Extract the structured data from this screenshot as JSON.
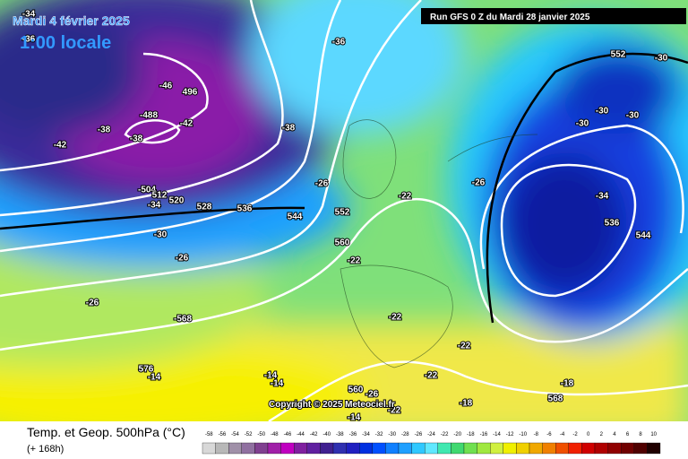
{
  "header": {
    "date": "Mardi 4 février 2025",
    "time": "1:00 locale",
    "run": "Run GFS 0 Z du Mardi 28 janvier 2025"
  },
  "copyright": "Copyright © 2025 Meteociel.fr",
  "footer": {
    "title": "Temp. et Geop. 500hPa (°C)",
    "range": "(+ 168h)"
  },
  "legend": [
    -58,
    -56,
    -54,
    -52,
    -50,
    -48,
    -46,
    -44,
    -42,
    -40,
    -38,
    -36,
    -34,
    -32,
    -30,
    -28,
    -26,
    -24,
    -22,
    -20,
    -18,
    -16,
    -14,
    -12,
    -10,
    -8,
    -6,
    -4,
    -2,
    0,
    2,
    4,
    6,
    8,
    10
  ],
  "contour_labels": [
    "-34",
    "-36",
    "-46",
    "496",
    "-488",
    "-42",
    "-38",
    "-42",
    "-38",
    "-38",
    "-36",
    "-504",
    "512",
    "-34",
    "520",
    "528",
    "536",
    "544",
    "-26",
    "552",
    "-22",
    "560",
    "-22",
    "-30",
    "-26",
    "-26",
    "-568",
    "-22",
    "576",
    "-14",
    "-14",
    "-14",
    "560",
    "-26",
    "-22",
    "-18",
    "568",
    "-18",
    "-22",
    "-22",
    "-26",
    "-30",
    "-30",
    "-30",
    "552",
    "-30",
    "-34",
    "536",
    "544",
    "-14"
  ]
}
